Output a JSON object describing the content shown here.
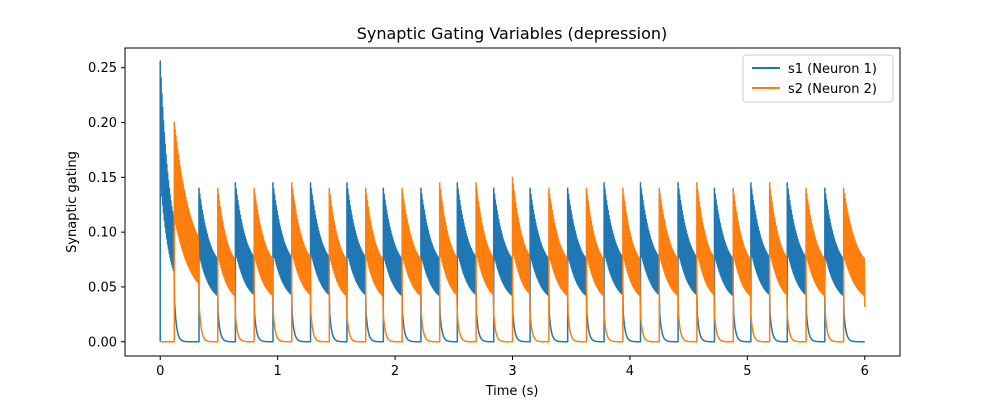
{
  "chart_data": {
    "type": "line",
    "title": "Synaptic Gating Variables (depression)",
    "xlabel": "Time (s)",
    "ylabel": "Synaptic gating",
    "xlim": [
      -0.3,
      6.3
    ],
    "ylim": [
      -0.013,
      0.268
    ],
    "xticks": [
      0,
      1,
      2,
      3,
      4,
      5,
      6
    ],
    "yticks": [
      0.0,
      0.05,
      0.1,
      0.15,
      0.2,
      0.25
    ],
    "ytick_labels": [
      "0.00",
      "0.05",
      "0.10",
      "0.15",
      "0.20",
      "0.25"
    ],
    "grid": false,
    "legend": "top-right",
    "series": [
      {
        "name": "s1 (Neuron 1)",
        "color": "#1f77b4",
        "bursts": [
          {
            "start": 0.0,
            "end": 0.12,
            "peak": 0.256,
            "trough": 0.04
          },
          {
            "start": 0.33,
            "end": 0.49,
            "peak": 0.14,
            "trough": 0.015
          },
          {
            "start": 0.64,
            "end": 0.8,
            "peak": 0.145,
            "trough": 0.015
          },
          {
            "start": 0.96,
            "end": 1.12,
            "peak": 0.145,
            "trough": 0.015
          },
          {
            "start": 1.28,
            "end": 1.44,
            "peak": 0.145,
            "trough": 0.015
          },
          {
            "start": 1.59,
            "end": 1.75,
            "peak": 0.145,
            "trough": 0.015
          },
          {
            "start": 1.9,
            "end": 2.06,
            "peak": 0.14,
            "trough": 0.015
          },
          {
            "start": 2.22,
            "end": 2.38,
            "peak": 0.14,
            "trough": 0.015
          },
          {
            "start": 2.53,
            "end": 2.69,
            "peak": 0.145,
            "trough": 0.015
          },
          {
            "start": 2.84,
            "end": 3.0,
            "peak": 0.14,
            "trough": 0.015
          },
          {
            "start": 3.15,
            "end": 3.31,
            "peak": 0.14,
            "trough": 0.015
          },
          {
            "start": 3.47,
            "end": 3.63,
            "peak": 0.14,
            "trough": 0.015
          },
          {
            "start": 3.78,
            "end": 3.94,
            "peak": 0.145,
            "trough": 0.015
          },
          {
            "start": 4.09,
            "end": 4.25,
            "peak": 0.145,
            "trough": 0.015
          },
          {
            "start": 4.41,
            "end": 4.57,
            "peak": 0.145,
            "trough": 0.015
          },
          {
            "start": 4.72,
            "end": 4.88,
            "peak": 0.14,
            "trough": 0.015
          },
          {
            "start": 5.03,
            "end": 5.19,
            "peak": 0.145,
            "trough": 0.015
          },
          {
            "start": 5.34,
            "end": 5.5,
            "peak": 0.145,
            "trough": 0.015
          },
          {
            "start": 5.66,
            "end": 5.82,
            "peak": 0.14,
            "trough": 0.015
          }
        ]
      },
      {
        "name": "s2 (Neuron 2)",
        "color": "#ff7f0e",
        "bursts": [
          {
            "start": 0.12,
            "end": 0.33,
            "peak": 0.2,
            "trough": 0.015
          },
          {
            "start": 0.49,
            "end": 0.64,
            "peak": 0.14,
            "trough": 0.015
          },
          {
            "start": 0.8,
            "end": 0.96,
            "peak": 0.14,
            "trough": 0.015
          },
          {
            "start": 1.12,
            "end": 1.28,
            "peak": 0.145,
            "trough": 0.015
          },
          {
            "start": 1.44,
            "end": 1.59,
            "peak": 0.14,
            "trough": 0.015
          },
          {
            "start": 1.75,
            "end": 1.9,
            "peak": 0.14,
            "trough": 0.015
          },
          {
            "start": 2.06,
            "end": 2.22,
            "peak": 0.14,
            "trough": 0.015
          },
          {
            "start": 2.38,
            "end": 2.53,
            "peak": 0.145,
            "trough": 0.015
          },
          {
            "start": 2.69,
            "end": 2.84,
            "peak": 0.145,
            "trough": 0.015
          },
          {
            "start": 3.0,
            "end": 3.15,
            "peak": 0.15,
            "trough": 0.015
          },
          {
            "start": 3.31,
            "end": 3.47,
            "peak": 0.14,
            "trough": 0.015
          },
          {
            "start": 3.63,
            "end": 3.78,
            "peak": 0.14,
            "trough": 0.015
          },
          {
            "start": 3.94,
            "end": 4.09,
            "peak": 0.14,
            "trough": 0.015
          },
          {
            "start": 4.25,
            "end": 4.41,
            "peak": 0.14,
            "trough": 0.015
          },
          {
            "start": 4.57,
            "end": 4.72,
            "peak": 0.145,
            "trough": 0.015
          },
          {
            "start": 4.88,
            "end": 5.03,
            "peak": 0.14,
            "trough": 0.015
          },
          {
            "start": 5.19,
            "end": 5.34,
            "peak": 0.145,
            "trough": 0.015
          },
          {
            "start": 5.5,
            "end": 5.66,
            "peak": 0.14,
            "trough": 0.015
          },
          {
            "start": 5.82,
            "end": 6.0,
            "peak": 0.14,
            "trough": 0.015
          }
        ]
      }
    ]
  }
}
